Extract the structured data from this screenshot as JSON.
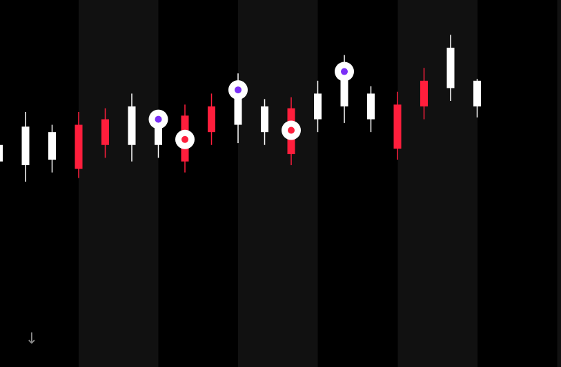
{
  "colors": {
    "background": "#000000",
    "band": "#111111",
    "bullish": "#ffffff",
    "bearish": "#ff1e3c",
    "marker_ring": "#ffffff",
    "marker_purple": "#7b2ff7",
    "marker_red": "#ff1e3c",
    "scroll_icon": "#8a8a8a"
  },
  "controls": {
    "scroll_down_icon": "arrow-down-icon",
    "scroll_down_glyph": "↓"
  },
  "chart_data": {
    "type": "candlestick",
    "title": "",
    "xlabel": "",
    "ylabel": "",
    "ylim": [
      0,
      100
    ],
    "grid": false,
    "legend": "none",
    "background_bands": [
      3,
      4,
      9,
      10,
      15,
      16,
      21
    ],
    "candles": [
      {
        "index": 0,
        "open": 56,
        "close": 60.5,
        "high": 60.5,
        "low": 56
      },
      {
        "index": 1,
        "open": 55,
        "close": 65.5,
        "high": 69.5,
        "low": 50.5
      },
      {
        "index": 2,
        "open": 56.5,
        "close": 64,
        "high": 66,
        "low": 53
      },
      {
        "index": 3,
        "open": 66,
        "close": 54,
        "high": 69.5,
        "low": 51.5
      },
      {
        "index": 4,
        "open": 67.5,
        "close": 60.5,
        "high": 70.5,
        "low": 57
      },
      {
        "index": 5,
        "open": 60.5,
        "close": 71,
        "high": 74.5,
        "low": 56
      },
      {
        "index": 6,
        "open": 60.5,
        "close": 68,
        "high": 68,
        "low": 57
      },
      {
        "index": 7,
        "open": 68.5,
        "close": 56,
        "high": 71.5,
        "low": 53
      },
      {
        "index": 8,
        "open": 71,
        "close": 64,
        "high": 74.5,
        "low": 60.5
      },
      {
        "index": 9,
        "open": 66,
        "close": 76,
        "high": 80,
        "low": 61
      },
      {
        "index": 10,
        "open": 64,
        "close": 71,
        "high": 73,
        "low": 60.5
      },
      {
        "index": 11,
        "open": 70.5,
        "close": 58,
        "high": 73.5,
        "low": 55
      },
      {
        "index": 12,
        "open": 67.5,
        "close": 74.5,
        "high": 78,
        "low": 64
      },
      {
        "index": 13,
        "open": 71,
        "close": 81.5,
        "high": 85,
        "low": 66.5
      },
      {
        "index": 14,
        "open": 67.5,
        "close": 74.5,
        "high": 76.5,
        "low": 64
      },
      {
        "index": 15,
        "open": 71.5,
        "close": 59.5,
        "high": 75,
        "low": 56.5
      },
      {
        "index": 16,
        "open": 78,
        "close": 71,
        "high": 81.5,
        "low": 67.5
      },
      {
        "index": 17,
        "open": 76,
        "close": 87,
        "high": 90.5,
        "low": 72.5
      },
      {
        "index": 18,
        "open": 71,
        "close": 78,
        "high": 78.5,
        "low": 68
      }
    ],
    "markers": [
      {
        "index": 6,
        "price": 67.5,
        "color": "purple"
      },
      {
        "index": 7,
        "price": 62,
        "color": "red"
      },
      {
        "index": 9,
        "price": 75.5,
        "color": "purple"
      },
      {
        "index": 11,
        "price": 64.5,
        "color": "red"
      },
      {
        "index": 13,
        "price": 80.5,
        "color": "purple"
      }
    ]
  }
}
